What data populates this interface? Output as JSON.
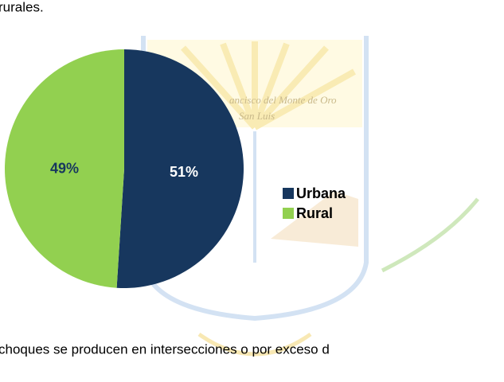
{
  "text_top": "rurales.",
  "watermark": {
    "line1": "ancisco del Monte de Oro",
    "line2": "San Luis"
  },
  "chart_data": {
    "type": "pie",
    "categories": [
      "Urbana",
      "Rural"
    ],
    "values": [
      51,
      49
    ],
    "value_labels": [
      "51%",
      "49%"
    ],
    "colors": [
      "#17375e",
      "#92d050"
    ],
    "label_colors": [
      "#ffffff",
      "#17375e"
    ],
    "legend": "right"
  },
  "text_bottom": "choques se producen en intersecciones o por exceso d"
}
